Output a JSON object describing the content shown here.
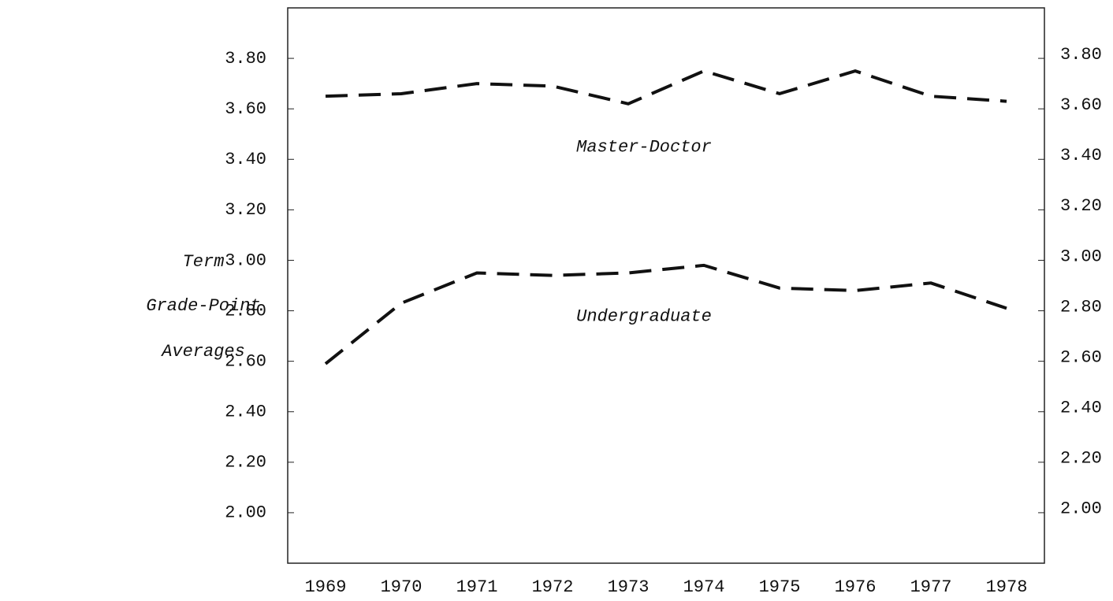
{
  "chart_data": {
    "type": "line",
    "ylabel": [
      "Term",
      "Grade-Point",
      "Averages"
    ],
    "categories": [
      "1969",
      "1970",
      "1971",
      "1972",
      "1973",
      "1974",
      "1975",
      "1976",
      "1977",
      "1978"
    ],
    "series": [
      {
        "name": "Master-Doctor",
        "color": "#111111",
        "values": [
          3.65,
          3.66,
          3.7,
          3.69,
          3.62,
          3.75,
          3.66,
          3.75,
          3.65,
          3.63
        ]
      },
      {
        "name": "Undergraduate",
        "color": "#111111",
        "values": [
          2.59,
          2.83,
          2.95,
          2.94,
          2.95,
          2.98,
          2.89,
          2.88,
          2.91,
          2.81
        ]
      }
    ],
    "ylim": [
      1.8,
      4.0
    ],
    "yticks": [
      {
        "value": 2.0,
        "label": "2.00"
      },
      {
        "value": 2.2,
        "label": "2.20"
      },
      {
        "value": 2.4,
        "label": "2.40"
      },
      {
        "value": 2.6,
        "label": "2.60"
      },
      {
        "value": 2.8,
        "label": "2.80"
      },
      {
        "value": 3.0,
        "label": "3.00"
      },
      {
        "value": 3.2,
        "label": "3.20"
      },
      {
        "value": 3.4,
        "label": "3.40"
      },
      {
        "value": 3.6,
        "label": "3.60"
      },
      {
        "value": 3.8,
        "label": "3.80"
      }
    ],
    "y2lim": [
      1.8,
      4.0
    ],
    "y2ticks": [
      {
        "value": 2.0,
        "label": "2.00"
      },
      {
        "value": 2.2,
        "label": "2.20"
      },
      {
        "value": 2.4,
        "label": "2.40"
      },
      {
        "value": 2.6,
        "label": "2.60"
      },
      {
        "value": 2.8,
        "label": "2.80"
      },
      {
        "value": 3.0,
        "label": "3.00"
      },
      {
        "value": 3.2,
        "label": "3.20"
      },
      {
        "value": 3.4,
        "label": "3.40"
      },
      {
        "value": 3.6,
        "label": "3.60"
      },
      {
        "value": 3.8,
        "label": "3.80"
      }
    ],
    "dashed": true
  }
}
